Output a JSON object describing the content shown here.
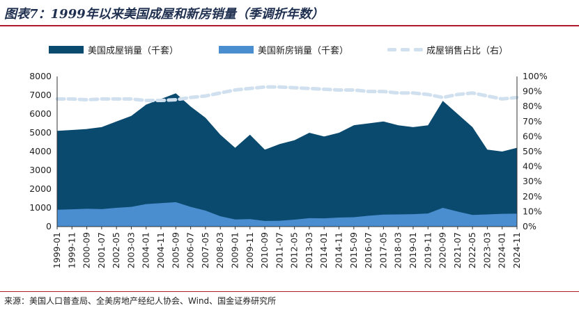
{
  "title": "图表7：1999年以来美国成屋和新房销量（季调折年数）",
  "source": "来源：美国人口普查局、全美房地产经纪人协会、Wind、国金证券研究所",
  "chart_data": {
    "type": "area",
    "title": "图表7：1999年以来美国成屋和新房销量（季调折年数）",
    "legend_position": "top",
    "grid": false,
    "y_left": {
      "ylim": [
        0,
        8000
      ],
      "ticks": [
        "0",
        "1000",
        "2000",
        "3000",
        "4000",
        "5000",
        "6000",
        "7000",
        "8000"
      ]
    },
    "y_right": {
      "ylim": [
        0,
        100
      ],
      "ticks": [
        "0%",
        "10%",
        "20%",
        "30%",
        "40%",
        "50%",
        "60%",
        "70%",
        "80%",
        "90%",
        "100%"
      ]
    },
    "x_tick_labels": [
      "1999-01",
      "1999-11",
      "2000-09",
      "2001-07",
      "2002-05",
      "2003-03",
      "2004-01",
      "2004-11",
      "2005-09",
      "2006-07",
      "2007-05",
      "2008-03",
      "2009-01",
      "2009-11",
      "2010-09",
      "2011-07",
      "2012-05",
      "2013-03",
      "2014-01",
      "2014-11",
      "2015-09",
      "2016-07",
      "2017-05",
      "2018-03",
      "2019-01",
      "2019-11",
      "2020-09",
      "2021-07",
      "2022-05",
      "2023-03",
      "2024-01",
      "2024-11"
    ],
    "x": [
      "1999-01",
      "1999-11",
      "2000-09",
      "2001-07",
      "2002-05",
      "2003-03",
      "2004-01",
      "2004-11",
      "2005-09",
      "2006-07",
      "2007-05",
      "2008-03",
      "2009-01",
      "2009-11",
      "2010-09",
      "2011-07",
      "2012-05",
      "2013-03",
      "2014-01",
      "2014-11",
      "2015-09",
      "2016-07",
      "2017-05",
      "2018-03",
      "2019-01",
      "2019-11",
      "2020-09",
      "2021-07",
      "2022-05",
      "2023-03",
      "2024-01",
      "2024-11"
    ],
    "series": [
      {
        "name": "美国成屋销量（千套）",
        "type": "area",
        "axis": "left",
        "color": "#0b4a6f",
        "values": [
          5100,
          5150,
          5200,
          5300,
          5600,
          5900,
          6500,
          6800,
          7100,
          6400,
          5800,
          4900,
          4200,
          4900,
          4100,
          4400,
          4600,
          5000,
          4800,
          5000,
          5400,
          5500,
          5600,
          5400,
          5300,
          5400,
          6700,
          6000,
          5300,
          4100,
          4000,
          4200
        ]
      },
      {
        "name": "美国新房销量（千套）",
        "type": "area",
        "axis": "left",
        "color": "#4a8ed0",
        "values": [
          900,
          920,
          950,
          930,
          1000,
          1050,
          1200,
          1250,
          1300,
          1050,
          850,
          550,
          380,
          400,
          300,
          310,
          370,
          450,
          440,
          480,
          500,
          580,
          640,
          650,
          660,
          700,
          1000,
          800,
          620,
          650,
          680,
          690
        ]
      },
      {
        "name": "成屋销售占比（右）",
        "type": "line",
        "axis": "right",
        "color": "#d0e0ef",
        "dashed": true,
        "values": [
          85,
          85,
          84.5,
          85,
          85,
          85,
          84,
          84,
          84.5,
          86,
          87,
          89,
          91,
          92,
          93,
          93,
          92.5,
          92,
          91.5,
          91,
          91,
          90,
          90,
          89,
          89,
          88,
          86,
          88,
          89,
          87,
          85,
          86
        ]
      }
    ]
  }
}
